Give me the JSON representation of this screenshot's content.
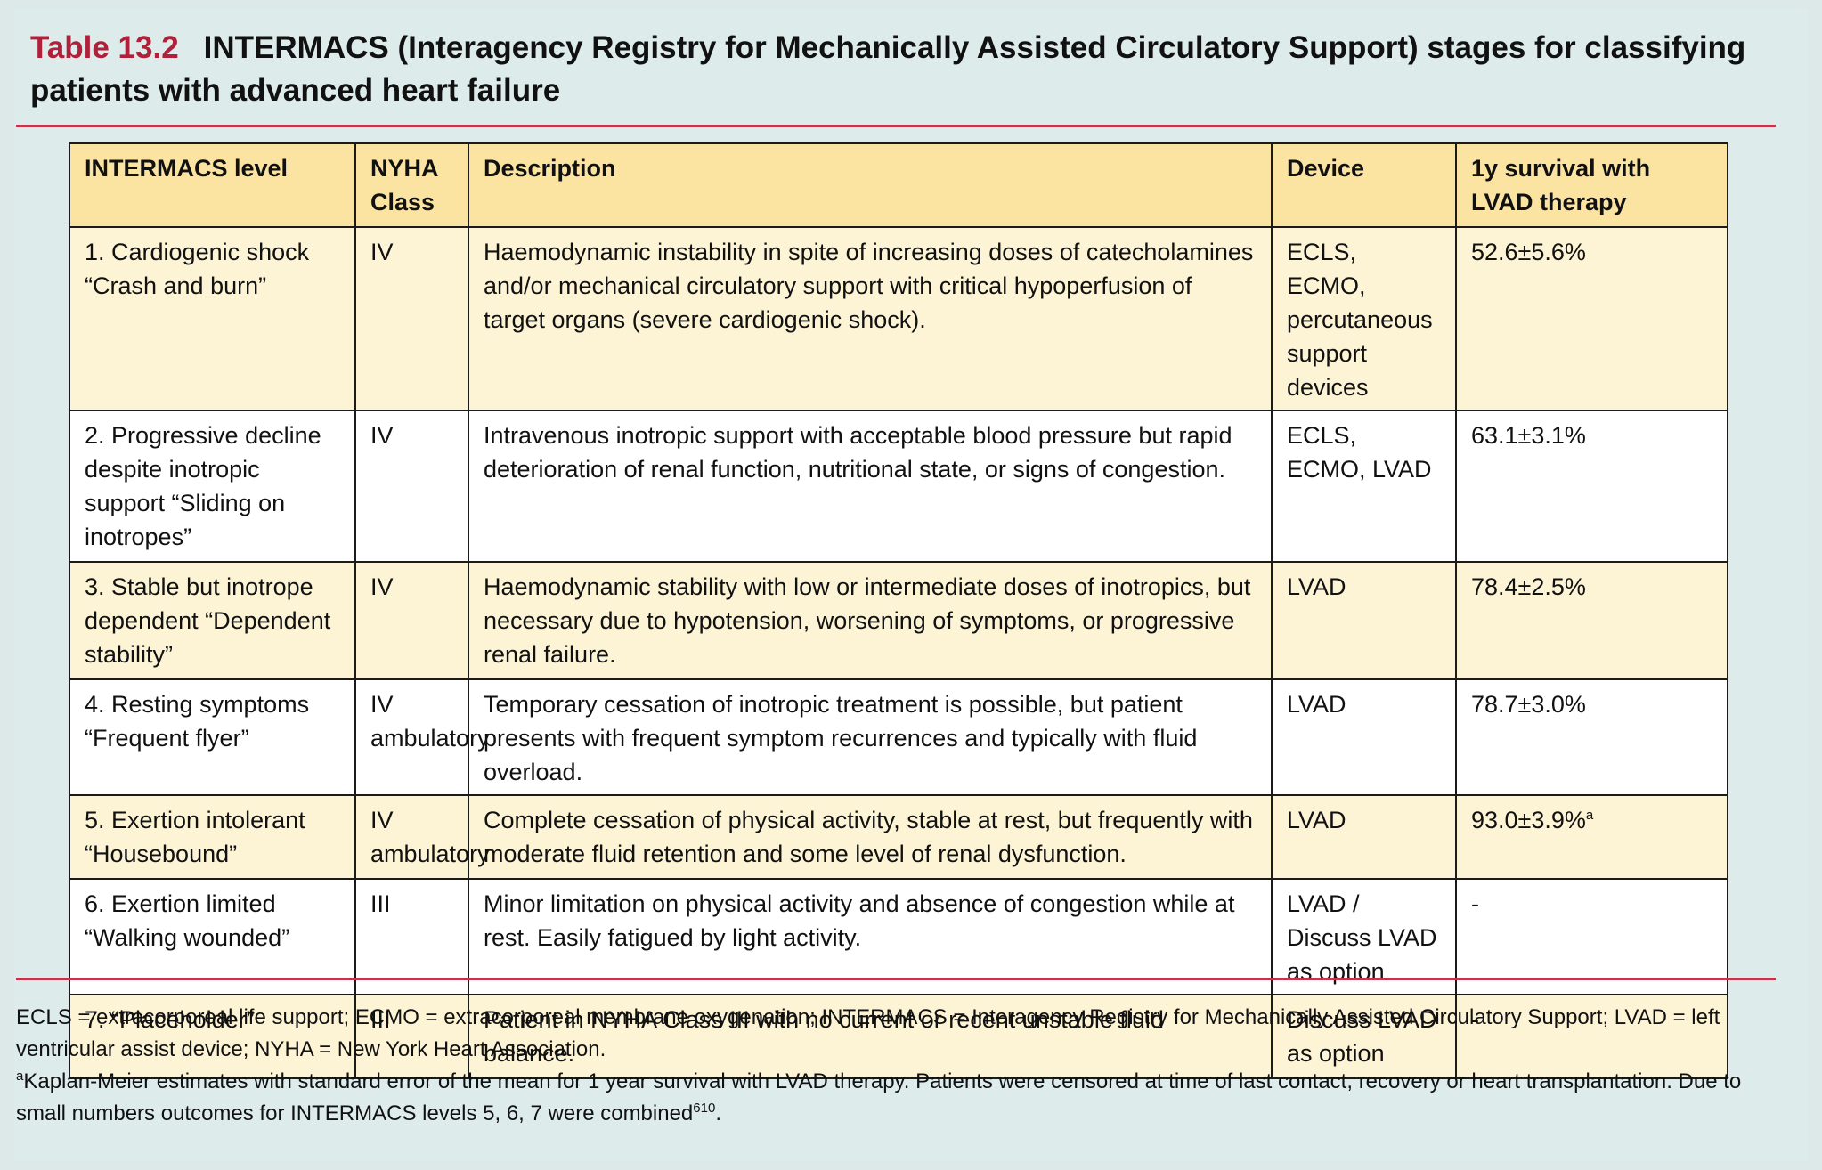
{
  "caption": {
    "label": "Table 13.2",
    "title": "INTERMACS (Interagency Registry for Mechanically Assisted Circulatory Support) stages for classifying patients with advanced heart failure"
  },
  "table": {
    "headers": [
      "INTERMACS level",
      "NYHA Class",
      "Description",
      "Device",
      "1y survival with LVAD therapy"
    ],
    "rows": [
      {
        "level": "1. Cardiogenic shock “Crash and burn”",
        "nyha": "IV",
        "description": "Haemodynamic instability in spite of increasing doses of catecholamines and/or mechanical circulatory support with critical hypoperfusion of target organs (severe cardiogenic shock).",
        "device": "ECLS, ECMO, percutaneous support devices",
        "survival": "52.6±5.6%",
        "survival_mark": ""
      },
      {
        "level": "2. Progressive decline despite inotropic support “Sliding on inotropes”",
        "nyha": "IV",
        "description": "Intravenous inotropic support with acceptable blood pressure but rapid deterioration of renal function, nutritional state, or signs of congestion.",
        "device": "ECLS, ECMO, LVAD",
        "survival": "63.1±3.1%",
        "survival_mark": ""
      },
      {
        "level": "3. Stable but inotrope dependent “Dependent stability”",
        "nyha": "IV",
        "description": "Haemodynamic stability with low or intermediate doses of inotropics, but necessary due to hypotension, worsening of symptoms, or progressive renal failure.",
        "device": "LVAD",
        "survival": "78.4±2.5%",
        "survival_mark": ""
      },
      {
        "level": "4. Resting symptoms “Frequent flyer”",
        "nyha": "IV ambulatory",
        "description": "Temporary cessation of inotropic treatment is possible, but patient presents with frequent symptom recurrences and typically with fluid overload.",
        "device": "LVAD",
        "survival": "78.7±3.0%",
        "survival_mark": ""
      },
      {
        "level": "5. Exertion intolerant “Housebound”",
        "nyha": "IV ambulatory",
        "description": "Complete cessation of physical activity, stable at rest, but frequently with moderate fluid retention and some level of renal dysfunction.",
        "device": "LVAD",
        "survival": "93.0±3.9%",
        "survival_mark": "a"
      },
      {
        "level": "6. Exertion limited “Walking wounded”",
        "nyha": "III",
        "description": "Minor limitation on physical activity and absence of congestion while at rest. Easily fatigued by light activity.",
        "device": "LVAD / Discuss LVAD as option",
        "survival": "-",
        "survival_mark": ""
      },
      {
        "level": "7. “Placeholder”",
        "nyha": "III",
        "description": "Patient in NYHA Class III with no current or recent unstable fluid balance.",
        "device": "Discuss LVAD as option",
        "survival": "-",
        "survival_mark": ""
      }
    ]
  },
  "notes": {
    "abbrev": "ECLS = extracorporeal life support; ECMO = extracorporeal membrane oxygenation; INTERMACS = Interagency Registry for Mechanically Assisted Circulatory Support; LVAD = left ventricular assist device; NYHA = New York Heart Association.",
    "footnote_mark": "a",
    "footnote": "Kaplan-Meier estimates with standard error of the mean for 1 year survival with LVAD therapy. Patients were censored at time of last contact, recovery or heart transplantation. Due to small numbers outcomes for INTERMACS levels 5, 6, 7 were combined",
    "ref": "610",
    "end": "."
  },
  "colors": {
    "background": "#ddeceb",
    "header_fill": "#fbe3a1",
    "odd_row_fill": "#fdf4d6",
    "rule": "#c4344d",
    "label": "#b0203a"
  }
}
